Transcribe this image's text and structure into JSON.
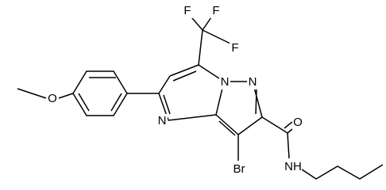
{
  "atoms": [
    {
      "label": "F"
    },
    {
      "label": "F"
    },
    {
      "label": "F"
    },
    {
      "label": "N"
    },
    {
      "label": "N"
    },
    {
      "label": "N"
    },
    {
      "label": "Br"
    },
    {
      "label": "O"
    },
    {
      "label": "NH"
    },
    {
      "label": "O"
    }
  ]
}
